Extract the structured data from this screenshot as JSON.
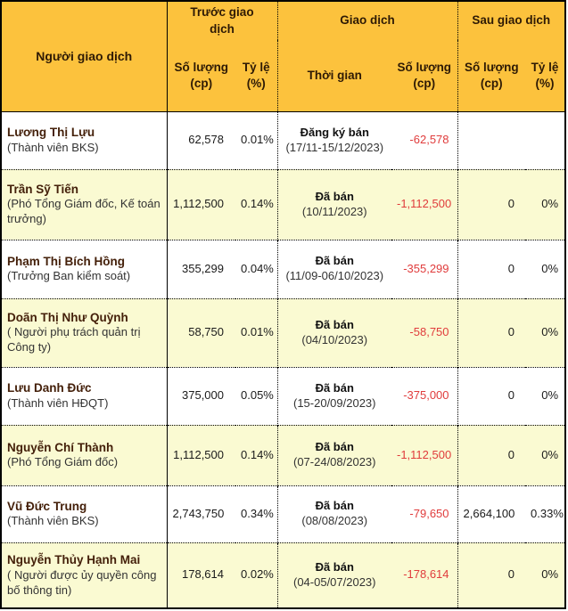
{
  "colors": {
    "header_bg": "#fcc23d",
    "header_text": "#2e1a05",
    "name_text": "#44200a",
    "row_bg": "#ffffff",
    "row_alt_bg": "#fafad2",
    "negative": "#e03c3c"
  },
  "table": {
    "headers": {
      "person": "Người giao dịch",
      "before_group": "Trước giao dịch",
      "transaction_group": "Giao dịch",
      "after_group": "Sau giao dịch",
      "quantity": "Số lượng (cp)",
      "ratio": "Tỷ lệ (%)",
      "time": "Thời gian"
    },
    "rows": [
      {
        "name": "Lương Thị Lựu",
        "role": "(Thành viên BKS)",
        "before_qty": "62,578",
        "before_ratio": "0.01%",
        "trans_type": "Đăng ký bán",
        "trans_date": "(17/11-15/12/2023)",
        "trans_qty": "-62,578",
        "after_qty": "",
        "after_ratio": ""
      },
      {
        "name": "Trần Sỹ Tiến",
        "role": "(Phó Tổng Giám đốc, Kế toán trưởng)",
        "before_qty": "1,112,500",
        "before_ratio": "0.14%",
        "trans_type": "Đã bán",
        "trans_date": "(10/11/2023)",
        "trans_qty": "-1,112,500",
        "after_qty": "0",
        "after_ratio": "0%"
      },
      {
        "name": "Phạm Thị Bích Hồng",
        "role": "(Trưởng Ban kiểm soát)",
        "before_qty": "355,299",
        "before_ratio": "0.04%",
        "trans_type": "Đã bán",
        "trans_date": "(11/09-06/10/2023)",
        "trans_qty": "-355,299",
        "after_qty": "0",
        "after_ratio": "0%"
      },
      {
        "name": "Doãn Thị Như Quỳnh",
        "role": "( Người phụ trách quản trị Công ty)",
        "before_qty": "58,750",
        "before_ratio": "0.01%",
        "trans_type": "Đã bán",
        "trans_date": "(04/10/2023)",
        "trans_qty": "-58,750",
        "after_qty": "0",
        "after_ratio": "0%"
      },
      {
        "name": "Lưu Danh Đức",
        "role": "(Thành viên HĐQT)",
        "before_qty": "375,000",
        "before_ratio": "0.05%",
        "trans_type": "Đã bán",
        "trans_date": "(15-20/09/2023)",
        "trans_qty": "-375,000",
        "after_qty": "0",
        "after_ratio": "0%"
      },
      {
        "name": "Nguyễn Chí Thành",
        "role": "(Phó Tổng Giám đốc)",
        "before_qty": "1,112,500",
        "before_ratio": "0.14%",
        "trans_type": "Đã bán",
        "trans_date": "(07-24/08/2023)",
        "trans_qty": "-1,112,500",
        "after_qty": "0",
        "after_ratio": "0%"
      },
      {
        "name": "Vũ Đức Trung",
        "role": "(Thành viên BKS)",
        "before_qty": "2,743,750",
        "before_ratio": "0.34%",
        "trans_type": "Đã bán",
        "trans_date": "(08/08/2023)",
        "trans_qty": "-79,650",
        "after_qty": "2,664,100",
        "after_ratio": "0.33%"
      },
      {
        "name": "Nguyễn Thủy Hạnh Mai",
        "role": "( Người được ủy quyền công bố thông tin)",
        "before_qty": "178,614",
        "before_ratio": "0.02%",
        "trans_type": "Đã bán",
        "trans_date": "(04-05/07/2023)",
        "trans_qty": "-178,614",
        "after_qty": "0",
        "after_ratio": "0%"
      }
    ]
  }
}
